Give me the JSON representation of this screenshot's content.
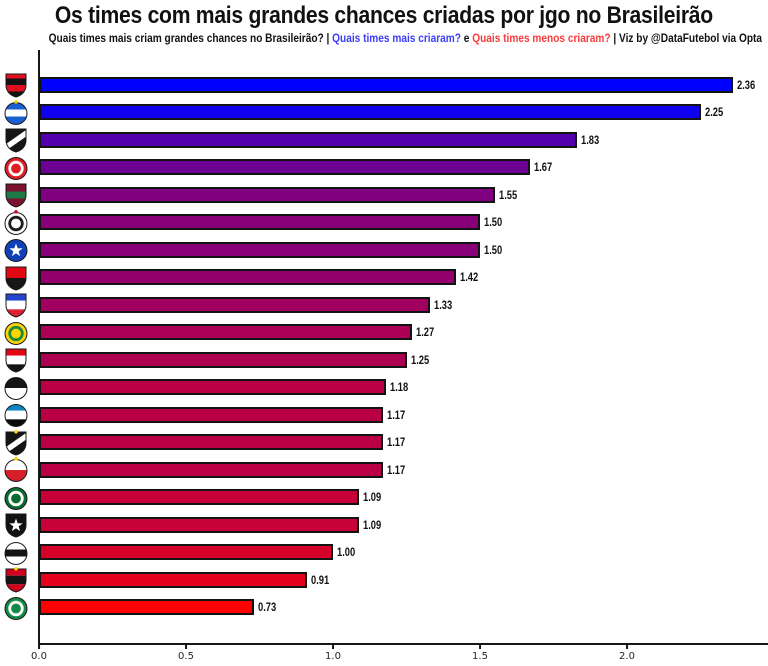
{
  "title": "Os times com mais grandes chances criadas por jgo no Brasileirão",
  "subtitle": {
    "part1": "Quais times mais criam grandes chances no Brasileirão? | ",
    "blue_text": "Quais times mais criaram?",
    "mid": " e ",
    "red_text": "Quais times menos criaram?",
    "part2": " | Viz by @DataFutebol via Opta",
    "blue_color": "#3d3dfb",
    "red_color": "#fa3c3c"
  },
  "chart_data": {
    "type": "bar",
    "orientation": "horizontal",
    "title": "Os times com mais grandes chances criadas por jgo no Brasileirão",
    "xlabel": "",
    "ylabel": "",
    "xlim": [
      0,
      2.48
    ],
    "xticks": [
      "0.0",
      "0.5",
      "1.0",
      "1.5",
      "2.0"
    ],
    "grid": false,
    "legend": "none",
    "color_encoding": "azul = mais grandes chances criadas, vermelho = menos grandes chances criadas",
    "categories": [
      "Flamengo",
      "Bahia",
      "Vasco da Gama",
      "Internacional",
      "Fluminense",
      "Corinthians",
      "Cruzeiro",
      "Vitória",
      "Fortaleza",
      "Mirassol",
      "São Paulo",
      "Ceará",
      "Grêmio",
      "Atlético-MG",
      "Red Bull Bragantino",
      "Palmeiras",
      "Botafogo",
      "Santos",
      "Sport Recife",
      "Juventude"
    ],
    "values": [
      2.36,
      2.25,
      1.83,
      1.67,
      1.55,
      1.5,
      1.5,
      1.42,
      1.33,
      1.27,
      1.25,
      1.18,
      1.17,
      1.17,
      1.17,
      1.09,
      1.09,
      1.0,
      0.91,
      0.73
    ],
    "value_labels": [
      "2.36",
      "2.25",
      "1.83",
      "1.67",
      "1.55",
      "1.50",
      "1.50",
      "1.42",
      "1.33",
      "1.27",
      "1.25",
      "1.18",
      "1.17",
      "1.17",
      "1.17",
      "1.09",
      "1.09",
      "1.00",
      "0.91",
      "0.73"
    ],
    "bar_colors": [
      "#0000FF",
      "#1100EE",
      "#5300AC",
      "#6C0093",
      "#7F0080",
      "#870078",
      "#870078",
      "#93006C",
      "#A1005E",
      "#AB0055",
      "#AE0051",
      "#B90046",
      "#BA0045",
      "#BA0045",
      "#BA0045",
      "#C70038",
      "#C70038",
      "#D5002A",
      "#E3001C",
      "#FF0000"
    ]
  },
  "teams": [
    {
      "name": "Flamengo",
      "value": 2.36,
      "label": "2.36",
      "color": "#0000FF",
      "logo": {
        "name": "flamengo-logo",
        "shape": "shield",
        "pattern": "hstripes",
        "colors": [
          "#E01020",
          "#121212",
          "#E01020",
          "#121212"
        ]
      }
    },
    {
      "name": "Bahia",
      "value": 2.25,
      "label": "2.25",
      "color": "#1100EE",
      "logo": {
        "name": "bahia-logo",
        "shape": "circle",
        "pattern": "band",
        "colors": [
          "#1A5FD0",
          "#FFFFFF"
        ],
        "accent": "#FFD400"
      }
    },
    {
      "name": "Vasco da Gama",
      "value": 1.83,
      "label": "1.83",
      "color": "#5300AC",
      "logo": {
        "name": "vasco-logo",
        "shape": "shield",
        "pattern": "diag",
        "colors": [
          "#151515",
          "#FFFFFF"
        ]
      }
    },
    {
      "name": "Internacional",
      "value": 1.67,
      "label": "1.67",
      "color": "#6C0093",
      "logo": {
        "name": "internacional-logo",
        "shape": "circle",
        "pattern": "ring",
        "colors": [
          "#E31B23",
          "#FFFFFF"
        ]
      }
    },
    {
      "name": "Fluminense",
      "value": 1.55,
      "label": "1.55",
      "color": "#7F0080",
      "logo": {
        "name": "fluminense-logo",
        "shape": "shield",
        "pattern": "band",
        "colors": [
          "#7A1230",
          "#1E7A44"
        ]
      }
    },
    {
      "name": "Corinthians",
      "value": 1.5,
      "label": "1.50",
      "color": "#870078",
      "logo": {
        "name": "corinthians-logo",
        "shape": "circle",
        "pattern": "ring",
        "colors": [
          "#FFFFFF",
          "#1A1A1A"
        ],
        "accent": "#C8102E"
      }
    },
    {
      "name": "Cruzeiro",
      "value": 1.5,
      "label": "1.50",
      "color": "#870078",
      "logo": {
        "name": "cruzeiro-logo",
        "shape": "circle",
        "pattern": "star",
        "colors": [
          "#1040B8",
          "#FFFFFF"
        ]
      }
    },
    {
      "name": "Vitória",
      "value": 1.42,
      "label": "1.42",
      "color": "#93006C",
      "logo": {
        "name": "vitoria-logo",
        "shape": "shield",
        "pattern": "half",
        "colors": [
          "#E30613",
          "#161616"
        ]
      }
    },
    {
      "name": "Fortaleza",
      "value": 1.33,
      "label": "1.33",
      "color": "#A1005E",
      "logo": {
        "name": "fortaleza-logo",
        "shape": "shield",
        "pattern": "hstripes",
        "colors": [
          "#2244CC",
          "#FFFFFF",
          "#DD2233"
        ]
      }
    },
    {
      "name": "Mirassol",
      "value": 1.27,
      "label": "1.27",
      "color": "#AB0055",
      "logo": {
        "name": "mirassol-logo",
        "shape": "circle",
        "pattern": "ring",
        "colors": [
          "#FFD400",
          "#1B8A3C"
        ]
      }
    },
    {
      "name": "São Paulo",
      "value": 1.25,
      "label": "1.25",
      "color": "#AE0051",
      "logo": {
        "name": "sao-paulo-logo",
        "shape": "shield",
        "pattern": "hstripes",
        "colors": [
          "#E30613",
          "#FFFFFF",
          "#161616"
        ]
      }
    },
    {
      "name": "Ceará",
      "value": 1.18,
      "label": "1.18",
      "color": "#B90046",
      "logo": {
        "name": "ceara-logo",
        "shape": "circle",
        "pattern": "half",
        "colors": [
          "#161616",
          "#FFFFFF"
        ]
      }
    },
    {
      "name": "Grêmio",
      "value": 1.17,
      "label": "1.17",
      "color": "#BA0045",
      "logo": {
        "name": "gremio-logo",
        "shape": "circle",
        "pattern": "hstripes",
        "colors": [
          "#0D86C3",
          "#FFFFFF",
          "#0A0A0A"
        ]
      }
    },
    {
      "name": "Atlético-MG",
      "value": 1.17,
      "label": "1.17",
      "color": "#BA0045",
      "logo": {
        "name": "atletico-mg-logo",
        "shape": "shield",
        "pattern": "diag",
        "colors": [
          "#141414",
          "#FFFFFF"
        ],
        "accent": "#FFD400"
      }
    },
    {
      "name": "Red Bull Bragantino",
      "value": 1.17,
      "label": "1.17",
      "color": "#BA0045",
      "logo": {
        "name": "bragantino-logo",
        "shape": "circle",
        "pattern": "half",
        "colors": [
          "#FFFFFF",
          "#D5202A"
        ],
        "accent": "#FFD400"
      }
    },
    {
      "name": "Palmeiras",
      "value": 1.09,
      "label": "1.09",
      "color": "#C70038",
      "logo": {
        "name": "palmeiras-logo",
        "shape": "circle",
        "pattern": "ring",
        "colors": [
          "#0A6B2F",
          "#FFFFFF"
        ]
      }
    },
    {
      "name": "Botafogo",
      "value": 1.09,
      "label": "1.09",
      "color": "#C70038",
      "logo": {
        "name": "botafogo-logo",
        "shape": "shield",
        "pattern": "star",
        "colors": [
          "#121212",
          "#FFFFFF"
        ]
      }
    },
    {
      "name": "Santos",
      "value": 1.0,
      "label": "1.00",
      "color": "#D5002A",
      "logo": {
        "name": "santos-logo",
        "shape": "circle",
        "pattern": "band",
        "colors": [
          "#FFFFFF",
          "#141414"
        ]
      }
    },
    {
      "name": "Sport Recife",
      "value": 0.91,
      "label": "0.91",
      "color": "#E3001C",
      "logo": {
        "name": "sport-recife-logo",
        "shape": "shield",
        "pattern": "hstripes",
        "colors": [
          "#D2001E",
          "#141414",
          "#D2001E"
        ],
        "accent": "#FFD400"
      }
    },
    {
      "name": "Juventude",
      "value": 0.73,
      "label": "0.73",
      "color": "#FF0000",
      "logo": {
        "name": "juventude-logo",
        "shape": "circle",
        "pattern": "ring",
        "colors": [
          "#128A46",
          "#FFFFFF"
        ]
      }
    }
  ]
}
